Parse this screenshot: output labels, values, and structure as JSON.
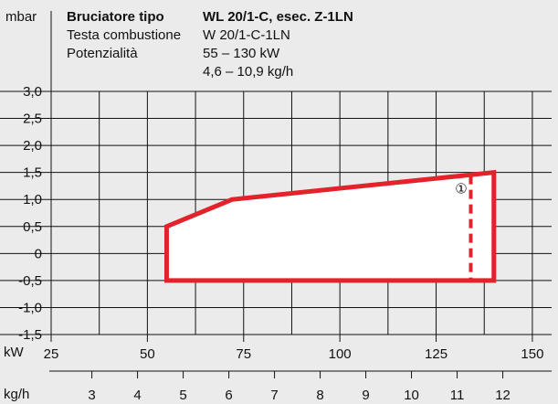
{
  "header": {
    "title_label": "Bruciatore tipo",
    "title_value": "WL 20/1-C, esec. Z-1LN",
    "rows": [
      {
        "label": "Testa combustione",
        "value": "W 20/1-C-1LN"
      },
      {
        "label": "Potenzialità",
        "value": "55 – 130 kW"
      },
      {
        "label": "",
        "value": "4,6 – 10,9 kg/h"
      }
    ]
  },
  "chart_data": {
    "type": "area",
    "ylabel": "mbar",
    "xlabel": "kW",
    "x2label": "kg/h",
    "xlim": [
      25,
      155
    ],
    "ylim": [
      -1.5,
      3.0
    ],
    "grid": true,
    "y_ticks": [
      "3,0",
      "2,5",
      "2,0",
      "1,5",
      "1,0",
      "0,5",
      "0",
      "-0,5",
      "-1,0",
      "-1,5"
    ],
    "x_ticks": [
      "25",
      "50",
      "75",
      "100",
      "125",
      "150"
    ],
    "x2_ticks": [
      "3",
      "4",
      "5",
      "6",
      "7",
      "8",
      "9",
      "10",
      "11",
      "12"
    ],
    "series": [
      {
        "points": [
          [
            55,
            -0.5
          ],
          [
            55,
            0.5
          ],
          [
            72,
            1.0
          ],
          [
            140,
            1.5
          ],
          [
            140,
            -0.5
          ]
        ],
        "color": "#e3222b"
      }
    ],
    "dashed_limit": {
      "x": 134,
      "y_from": -0.5,
      "y_to": 1.45,
      "color": "#e3222b"
    },
    "annotation": {
      "text": "①",
      "x": 131.5,
      "y": 1.2
    }
  }
}
